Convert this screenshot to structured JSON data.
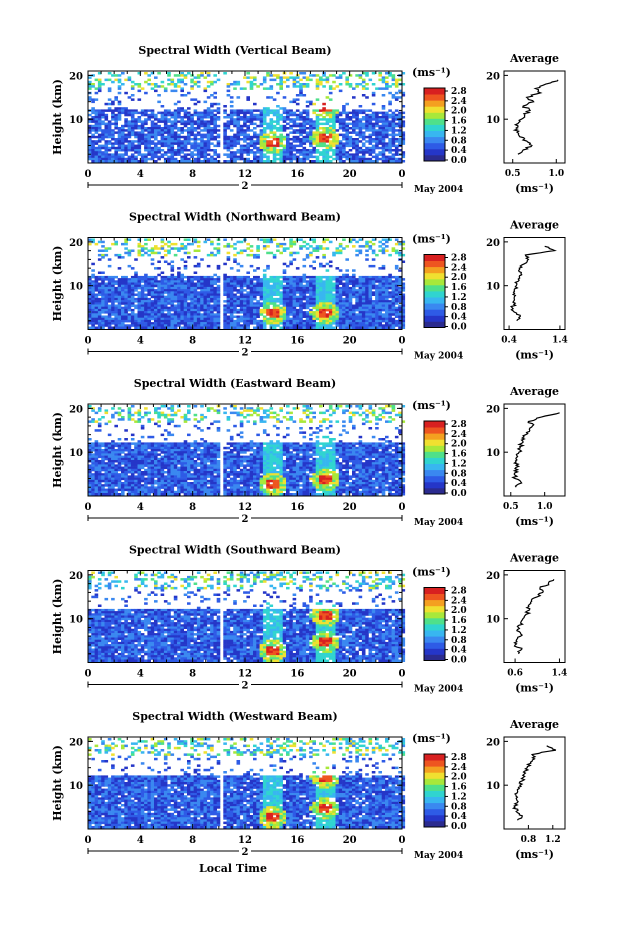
{
  "chart_data": [
    {
      "type": "heatmap",
      "title": "Spectral Width (Vertical Beam)",
      "ylabel": "Height (km)",
      "yticks": [
        "20",
        "10"
      ],
      "xticks": [
        "0",
        "4",
        "8",
        "12",
        "16",
        "20",
        "0"
      ],
      "day_marker": "2",
      "month_label": "May 2004",
      "colorbar": {
        "unit": "(ms⁻¹)",
        "ticks": [
          "0.0",
          "0.4",
          "0.8",
          "1.2",
          "1.6",
          "2.0",
          "2.4",
          "2.8"
        ]
      },
      "profile": {
        "title": "Average",
        "xlabel": "(ms⁻¹)",
        "xticks": [
          "0.5",
          "1.0"
        ],
        "yticks": [
          "20",
          "10"
        ],
        "xlim": [
          0.4,
          1.1
        ],
        "heights": [
          2,
          3,
          4,
          5,
          6,
          7,
          8,
          9,
          10,
          11,
          12,
          13,
          14,
          15,
          16,
          17,
          18,
          19
        ],
        "values": [
          0.56,
          0.62,
          0.72,
          0.66,
          0.58,
          0.55,
          0.54,
          0.56,
          0.6,
          0.64,
          0.7,
          0.62,
          0.74,
          0.66,
          0.82,
          0.76,
          0.88,
          1.02
        ]
      },
      "features": [
        {
          "time_h": 18,
          "height_km": 6
        },
        {
          "time_h": 18,
          "height_km": 13
        },
        {
          "time_h": 14,
          "height_km": 5
        }
      ]
    },
    {
      "type": "heatmap",
      "title": "Spectral Width (Northward Beam)",
      "ylabel": "Height (km)",
      "yticks": [
        "20",
        "10"
      ],
      "xticks": [
        "0",
        "4",
        "8",
        "12",
        "16",
        "20",
        "0"
      ],
      "day_marker": "2",
      "month_label": "May 2004",
      "colorbar": {
        "unit": "(ms⁻¹)",
        "ticks": [
          "0.0",
          "0.4",
          "0.8",
          "1.2",
          "1.6",
          "2.0",
          "2.4",
          "2.8"
        ]
      },
      "profile": {
        "title": "Average",
        "xlabel": "(ms⁻¹)",
        "xticks": [
          "0.4",
          "1.4"
        ],
        "yticks": [
          "20",
          "10"
        ],
        "xlim": [
          0.3,
          1.5
        ],
        "heights": [
          2,
          3,
          4,
          5,
          6,
          7,
          8,
          9,
          10,
          11,
          12,
          13,
          14,
          15,
          16,
          17,
          18,
          19
        ],
        "values": [
          0.55,
          0.62,
          0.5,
          0.46,
          0.52,
          0.5,
          0.48,
          0.5,
          0.54,
          0.58,
          0.6,
          0.64,
          0.6,
          0.7,
          0.78,
          0.72,
          1.3,
          1.1
        ]
      },
      "features": [
        {
          "time_h": 18,
          "height_km": 4
        },
        {
          "time_h": 14,
          "height_km": 4
        }
      ]
    },
    {
      "type": "heatmap",
      "title": "Spectral Width (Eastward Beam)",
      "ylabel": "Height (km)",
      "yticks": [
        "20",
        "10"
      ],
      "xticks": [
        "0",
        "4",
        "8",
        "12",
        "16",
        "20",
        "0"
      ],
      "day_marker": "2",
      "month_label": "May 2004",
      "colorbar": {
        "unit": "(ms⁻¹)",
        "ticks": [
          "0.0",
          "0.4",
          "0.8",
          "1.2",
          "1.6",
          "2.0",
          "2.4",
          "2.8"
        ]
      },
      "profile": {
        "title": "Average",
        "xlabel": "(ms⁻¹)",
        "xticks": [
          "0.5",
          "1.0"
        ],
        "yticks": [
          "20",
          "10"
        ],
        "xlim": [
          0.4,
          1.3
        ],
        "heights": [
          2,
          3,
          4,
          5,
          6,
          7,
          8,
          9,
          10,
          11,
          12,
          13,
          14,
          15,
          16,
          17,
          18,
          19
        ],
        "values": [
          0.58,
          0.66,
          0.56,
          0.55,
          0.6,
          0.58,
          0.57,
          0.6,
          0.62,
          0.64,
          0.66,
          0.7,
          0.72,
          0.78,
          0.82,
          0.76,
          0.95,
          1.22
        ]
      },
      "features": [
        {
          "time_h": 18,
          "height_km": 4
        },
        {
          "time_h": 14,
          "height_km": 3
        }
      ]
    },
    {
      "type": "heatmap",
      "title": "Spectral Width (Southward Beam)",
      "ylabel": "Height (km)",
      "yticks": [
        "20",
        "10"
      ],
      "xticks": [
        "0",
        "4",
        "8",
        "12",
        "16",
        "20",
        "0"
      ],
      "day_marker": "2",
      "month_label": "May 2004",
      "colorbar": {
        "unit": "(ms⁻¹)",
        "ticks": [
          "0.0",
          "0.4",
          "0.8",
          "1.2",
          "1.6",
          "2.0",
          "2.4",
          "2.8"
        ]
      },
      "profile": {
        "title": "Average",
        "xlabel": "(ms⁻¹)",
        "xticks": [
          "0.6",
          "1.4"
        ],
        "yticks": [
          "20",
          "10"
        ],
        "xlim": [
          0.4,
          1.5
        ],
        "heights": [
          2,
          3,
          4,
          5,
          6,
          7,
          8,
          9,
          10,
          11,
          12,
          13,
          14,
          15,
          16,
          17,
          18,
          19
        ],
        "values": [
          0.66,
          0.72,
          0.6,
          0.62,
          0.7,
          0.68,
          0.66,
          0.7,
          0.74,
          0.8,
          0.86,
          0.84,
          0.9,
          1.0,
          1.1,
          1.05,
          1.2,
          1.3
        ]
      },
      "features": [
        {
          "time_h": 18,
          "height_km": 5
        },
        {
          "time_h": 18,
          "height_km": 11
        },
        {
          "time_h": 14,
          "height_km": 3
        }
      ]
    },
    {
      "type": "heatmap",
      "title": "Spectral Width (Westward Beam)",
      "ylabel": "Height (km)",
      "yticks": [
        "20",
        "10"
      ],
      "xticks": [
        "0",
        "4",
        "8",
        "12",
        "16",
        "20",
        "0"
      ],
      "day_marker": "2",
      "month_label": "May 2004",
      "xlabel": "Local Time",
      "colorbar": {
        "unit": "(ms⁻¹)",
        "ticks": [
          "0.0",
          "0.4",
          "0.8",
          "1.2",
          "1.6",
          "2.0",
          "2.4",
          "2.8"
        ]
      },
      "profile": {
        "title": "Average",
        "xlabel": "(ms⁻¹)",
        "xticks": [
          "0.8",
          "1.2"
        ],
        "yticks": [
          "20",
          "10"
        ],
        "xlim": [
          0.4,
          1.4
        ],
        "heights": [
          2,
          3,
          4,
          5,
          6,
          7,
          8,
          9,
          10,
          11,
          12,
          13,
          14,
          15,
          16,
          17,
          18,
          19
        ],
        "values": [
          0.62,
          0.7,
          0.6,
          0.58,
          0.62,
          0.6,
          0.58,
          0.62,
          0.66,
          0.7,
          0.74,
          0.72,
          0.78,
          0.84,
          0.9,
          0.86,
          1.25,
          1.1
        ]
      },
      "features": [
        {
          "time_h": 18,
          "height_km": 5
        },
        {
          "time_h": 18,
          "height_km": 12
        },
        {
          "time_h": 14,
          "height_km": 3
        }
      ]
    }
  ],
  "colors": {
    "scale": [
      "#2b2b8f",
      "#2536c8",
      "#2e5be6",
      "#3a88f0",
      "#38b6f0",
      "#30d4d0",
      "#4fe08a",
      "#a8e83a",
      "#f0e030",
      "#f4a020",
      "#ee5520",
      "#d82020"
    ],
    "background": "#ffffff",
    "axis": "#000000"
  }
}
